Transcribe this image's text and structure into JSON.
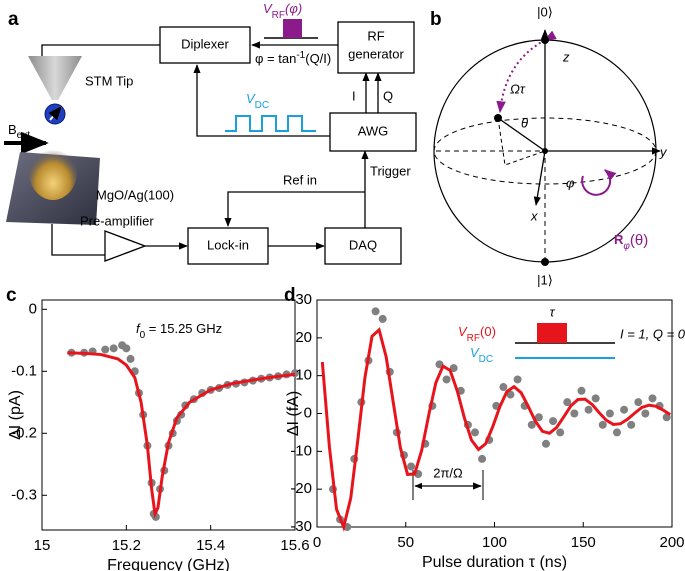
{
  "panel_labels": [
    "a",
    "b",
    "c",
    "d"
  ],
  "diagram_a": {
    "diplexer": "Diplexer",
    "rf_generator": [
      "RF",
      "generator"
    ],
    "v_rf": {
      "base": "V",
      "sub": "RF",
      "suffix": "(φ)"
    },
    "phase": {
      "base": "φ = tan",
      "sup": "-1",
      "suffix": "(Q/I)"
    },
    "stm_tip": "STM Tip",
    "b_ext": {
      "base": "B",
      "sub": "ext"
    },
    "v_dc": {
      "base": "V",
      "sub": "DC"
    },
    "i": "I",
    "q": "Q",
    "awg": "AWG",
    "sample": "MgO/Ag(100)",
    "trigger": "Trigger",
    "ref_in": "Ref in",
    "preamp": "Pre-amplifier",
    "lockin": "Lock-in",
    "daq": "DAQ"
  },
  "diagram_b": {
    "ket0": "|0⟩",
    "z": "z",
    "omega_tau": "Ωτ",
    "theta": "θ",
    "y": "y",
    "phi": "φ",
    "x": "x",
    "rotation": {
      "base": "R",
      "sub": "φ",
      "suffix": "(θ)"
    },
    "ket1": "|1⟩"
  },
  "chart_data": [
    {
      "type": "scatter",
      "xlabel": "Frequency (GHz)",
      "ylabel": "ΔI (pA)",
      "annotation": {
        "base": "f",
        "sub": "0",
        "suffix": " = 15.25 GHz"
      },
      "xlim": [
        15,
        15.6
      ],
      "ylim": [
        -0.356,
        0.015
      ],
      "xticks": [
        15,
        15.2,
        15.4,
        15.6
      ],
      "yticks": [
        -0.3,
        -0.2,
        -0.1,
        0
      ],
      "series": [
        {
          "style": "markers",
          "color": "#808080",
          "x": [
            15.07,
            15.1,
            15.12,
            15.15,
            15.17,
            15.19,
            15.2,
            15.21,
            15.22,
            15.23,
            15.24,
            15.25,
            15.26,
            15.265,
            15.27,
            15.28,
            15.29,
            15.3,
            15.31,
            15.32,
            15.33,
            15.34,
            15.36,
            15.38,
            15.4,
            15.42,
            15.44,
            15.46,
            15.48,
            15.5,
            15.52,
            15.54,
            15.56,
            15.58,
            15.6
          ],
          "values": [
            -0.07,
            -0.07,
            -0.068,
            -0.065,
            -0.063,
            -0.058,
            -0.063,
            -0.08,
            -0.1,
            -0.135,
            -0.17,
            -0.22,
            -0.28,
            -0.33,
            -0.335,
            -0.29,
            -0.26,
            -0.22,
            -0.2,
            -0.18,
            -0.17,
            -0.155,
            -0.145,
            -0.135,
            -0.13,
            -0.127,
            -0.122,
            -0.12,
            -0.118,
            -0.115,
            -0.112,
            -0.11,
            -0.108,
            -0.105,
            -0.103
          ]
        },
        {
          "style": "line",
          "color": "#e8141c",
          "x": [
            15.06,
            15.1,
            15.14,
            15.18,
            15.2,
            15.22,
            15.235,
            15.25,
            15.26,
            15.268,
            15.275,
            15.285,
            15.3,
            15.32,
            15.35,
            15.4,
            15.45,
            15.5,
            15.55,
            15.6
          ],
          "values": [
            -0.07,
            -0.071,
            -0.073,
            -0.08,
            -0.09,
            -0.11,
            -0.15,
            -0.22,
            -0.29,
            -0.33,
            -0.32,
            -0.27,
            -0.215,
            -0.175,
            -0.15,
            -0.13,
            -0.12,
            -0.114,
            -0.109,
            -0.105
          ]
        }
      ]
    },
    {
      "type": "scatter",
      "xlabel": "Pulse duration τ (ns)",
      "ylabel": "ΔI (fA)",
      "annotations": {
        "period": "2π/Ω",
        "tau": "τ",
        "v_rf": {
          "base": "V",
          "sub": "RF",
          "suffix": "(0)"
        },
        "v_dc": {
          "base": "V",
          "sub": "DC"
        },
        "iq": "I = 1, Q = 0"
      },
      "xlim": [
        0,
        200
      ],
      "ylim": [
        -30,
        30
      ],
      "xticks": [
        0,
        50,
        100,
        150,
        200
      ],
      "yticks": [
        -30,
        -20,
        -10,
        0,
        10,
        20,
        30
      ],
      "series": [
        {
          "style": "markers",
          "color": "#808080",
          "x": [
            9,
            13,
            17,
            21,
            25,
            29,
            33,
            37,
            41,
            45,
            49,
            53,
            57,
            61,
            65,
            69,
            73,
            77,
            81,
            85,
            89,
            93,
            97,
            101,
            105,
            109,
            113,
            117,
            121,
            125,
            129,
            133,
            137,
            141,
            145,
            149,
            153,
            157,
            161,
            165,
            169,
            173,
            177,
            181,
            185,
            189,
            193,
            197
          ],
          "values": [
            -20,
            -28,
            -30,
            -12,
            3,
            14,
            27,
            25,
            11,
            -5,
            -11,
            -14,
            -16,
            -8,
            2,
            13,
            9,
            12,
            6,
            -3,
            -5,
            -12,
            -7,
            2,
            7,
            5,
            9,
            2,
            -3,
            -1,
            -8,
            -2,
            -5,
            3,
            0,
            6,
            1,
            4,
            -3,
            0,
            -5,
            1,
            -3,
            3,
            0,
            4,
            2,
            -1
          ]
        },
        {
          "style": "line",
          "color": "#e8141c",
          "x": [
            3,
            7,
            11,
            15,
            19,
            23,
            27,
            31,
            35,
            39,
            43,
            47,
            51,
            55,
            59,
            63,
            67,
            71,
            75,
            79,
            83,
            87,
            91,
            95,
            99,
            103,
            107,
            111,
            115,
            119,
            123,
            127,
            131,
            135,
            139,
            143,
            147,
            151,
            155,
            159,
            163,
            167,
            171,
            175,
            179,
            183,
            187,
            191,
            195,
            199
          ],
          "values": [
            13.6,
            -8.9,
            -25.3,
            -30,
            -22.4,
            -7.0,
            9.5,
            20.4,
            22.1,
            14.9,
            2.8,
            -9.1,
            -16.1,
            -16.0,
            -9.7,
            -0.3,
            8.2,
            12.5,
            11.4,
            6.0,
            -1.1,
            -7.0,
            -9.5,
            -8.0,
            -3.5,
            1.8,
            5.8,
            7.1,
            5.5,
            1.9,
            -2.0,
            -4.7,
            -5.2,
            -3.7,
            -0.9,
            2.0,
            3.7,
            3.8,
            2.4,
            0.2,
            -1.8,
            -2.9,
            -2.7,
            -1.5,
            0.1,
            1.6,
            2.2,
            1.9,
            0.9,
            -0.3
          ]
        }
      ]
    }
  ]
}
